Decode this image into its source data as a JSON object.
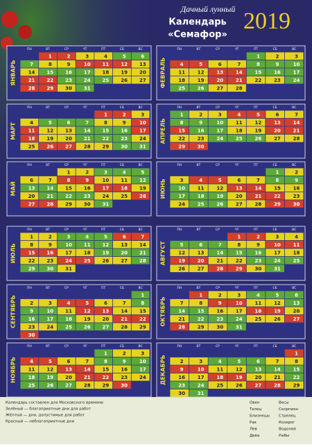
{
  "header": {
    "subtitle": "Дачный лунный",
    "title": "Календарь",
    "name": "«Семафор»",
    "year": 2019
  },
  "weekdays": [
    "ПН",
    "ВТ",
    "СР",
    "ЧТ",
    "ПТ",
    "СБ",
    "ВС"
  ],
  "palette": {
    "R": "#d4402a",
    "Y": "#e6d31e",
    "G": "#5daa38"
  },
  "months": [
    {
      "name": "ЯНВАРЬ",
      "days": [
        1,
        2,
        3,
        4,
        5,
        6,
        7,
        8,
        9,
        10,
        11,
        12,
        13,
        14,
        15,
        16,
        17,
        18,
        19,
        20,
        21,
        22,
        23,
        24,
        25,
        26,
        27,
        28,
        29,
        30,
        31
      ],
      "colors": "RRYYGGGYYRRRYYGGGYYYRRGGGYYRRYG"
    },
    {
      "name": "ФЕВРАЛЬ",
      "days": [
        1,
        2,
        3,
        4,
        5,
        6,
        7,
        8,
        9,
        10,
        11,
        12,
        13,
        14,
        15,
        16,
        17,
        18,
        19,
        20,
        21,
        22,
        23,
        24,
        25,
        26,
        27,
        28
      ],
      "colors": "GYYRRYYGGGYYRRGGGYYRRYYGGGYY"
    },
    {
      "name": "МАРТ",
      "days": [
        1,
        2,
        3,
        4,
        5,
        6,
        7,
        8,
        9,
        10,
        11,
        12,
        13,
        14,
        15,
        16,
        17,
        18,
        19,
        20,
        21,
        22,
        23,
        24,
        25,
        26,
        27,
        28,
        29,
        30,
        31
      ],
      "colors": "RRYYGGGYYRRYYGGGRRYYGGGYYRRYYGG"
    },
    {
      "name": "АПРЕЛЬ",
      "days": [
        1,
        2,
        3,
        4,
        5,
        6,
        7,
        8,
        9,
        10,
        11,
        12,
        13,
        14,
        15,
        16,
        17,
        18,
        19,
        20,
        21,
        22,
        23,
        24,
        25,
        26,
        27,
        28,
        29,
        30
      ],
      "colors": "GYYRRYYGGGYYRRRGGYYRRYYGGGYYRR"
    },
    {
      "name": "МАЙ",
      "days": [
        1,
        2,
        3,
        4,
        5,
        6,
        7,
        8,
        9,
        10,
        11,
        12,
        13,
        14,
        15,
        16,
        17,
        18,
        19,
        20,
        21,
        22,
        23,
        24,
        25,
        26,
        27,
        28,
        29,
        30,
        31
      ],
      "colors": "YYGGGYYRRYYGGGYYRRYYGGGYYRRRYYG"
    },
    {
      "name": "ИЮНЬ",
      "days": [
        1,
        2,
        3,
        4,
        5,
        6,
        7,
        8,
        9,
        10,
        11,
        12,
        13,
        14,
        15,
        16,
        17,
        18,
        19,
        20,
        21,
        22,
        23,
        24,
        25,
        26,
        27,
        28,
        29,
        30
      ],
      "colors": "GYYRRYYGGGYYRRYYGGGYRRYYGGYYRR"
    },
    {
      "name": "ИЮЛЬ",
      "days": [
        1,
        2,
        3,
        4,
        5,
        6,
        7,
        8,
        9,
        10,
        11,
        12,
        13,
        14,
        15,
        16,
        17,
        18,
        19,
        20,
        21,
        22,
        23,
        24,
        25,
        26,
        27,
        28,
        29,
        30,
        31
      ],
      "colors": "YYGGGRRYYGGGYYRRYYGGGYYRRYYGGGY"
    },
    {
      "name": "АВГУСТ",
      "days": [
        1,
        2,
        3,
        4,
        5,
        6,
        7,
        8,
        9,
        10,
        11,
        12,
        13,
        14,
        15,
        16,
        17,
        18,
        19,
        20,
        21,
        22,
        23,
        24,
        25,
        26,
        27,
        28,
        29,
        30,
        31
      ],
      "colors": "RRYYGGGYYRRYYGGGYYRRYYGGGYYRRYG"
    },
    {
      "name": "СЕНТЯБРЬ",
      "days": [
        1,
        2,
        3,
        4,
        5,
        6,
        7,
        8,
        9,
        10,
        11,
        12,
        13,
        14,
        15,
        16,
        17,
        18,
        19,
        20,
        21,
        22,
        23,
        24,
        25,
        26,
        27,
        28,
        29,
        30
      ],
      "colors": "GYYRRYYGGGYRRYYGGGYYRRYYGGGYYR"
    },
    {
      "name": "ОКТЯБРЬ",
      "days": [
        1,
        2,
        3,
        4,
        5,
        6,
        7,
        8,
        9,
        10,
        11,
        12,
        13,
        14,
        15,
        16,
        17,
        18,
        19,
        20,
        21,
        22,
        23,
        24,
        25,
        26,
        27,
        28,
        29,
        30,
        31
      ],
      "colors": "RYYGGGYYRRYYGGGYYRRYYGGGYYRRYYG"
    },
    {
      "name": "НОЯБРЬ",
      "days": [
        1,
        2,
        3,
        4,
        5,
        6,
        7,
        8,
        9,
        10,
        11,
        12,
        13,
        14,
        15,
        16,
        17,
        18,
        19,
        20,
        21,
        22,
        23,
        24,
        25,
        26,
        27,
        28,
        29,
        30
      ],
      "colors": "GYYRRYYGGGYYRRYYGGGYRRYYGGGYYR"
    },
    {
      "name": "ДЕКАБРЬ",
      "days": [
        1,
        2,
        3,
        4,
        5,
        6,
        7,
        8,
        9,
        10,
        11,
        12,
        13,
        14,
        15,
        16,
        17,
        18,
        19,
        20,
        21,
        22,
        23,
        24,
        25,
        26,
        27,
        28,
        29,
        30,
        31
      ],
      "colors": "RYYGGGYYRRYYGGGYYRRYYGGGYYRRYYG"
    }
  ],
  "legend": {
    "notes": [
      "Календарь составлен для Московского времени",
      "Зелёный — благоприятные дни для работ",
      "Жёлтый — дни, допустимые для работ",
      "Красный — неблагоприятные дни"
    ],
    "zodiac": [
      "Овен",
      "Телец",
      "Близнецы",
      "Рак",
      "Лев",
      "Дева",
      "Весы",
      "Скорпион",
      "Стрелец",
      "Козерог",
      "Водолей",
      "Рыбы"
    ]
  }
}
